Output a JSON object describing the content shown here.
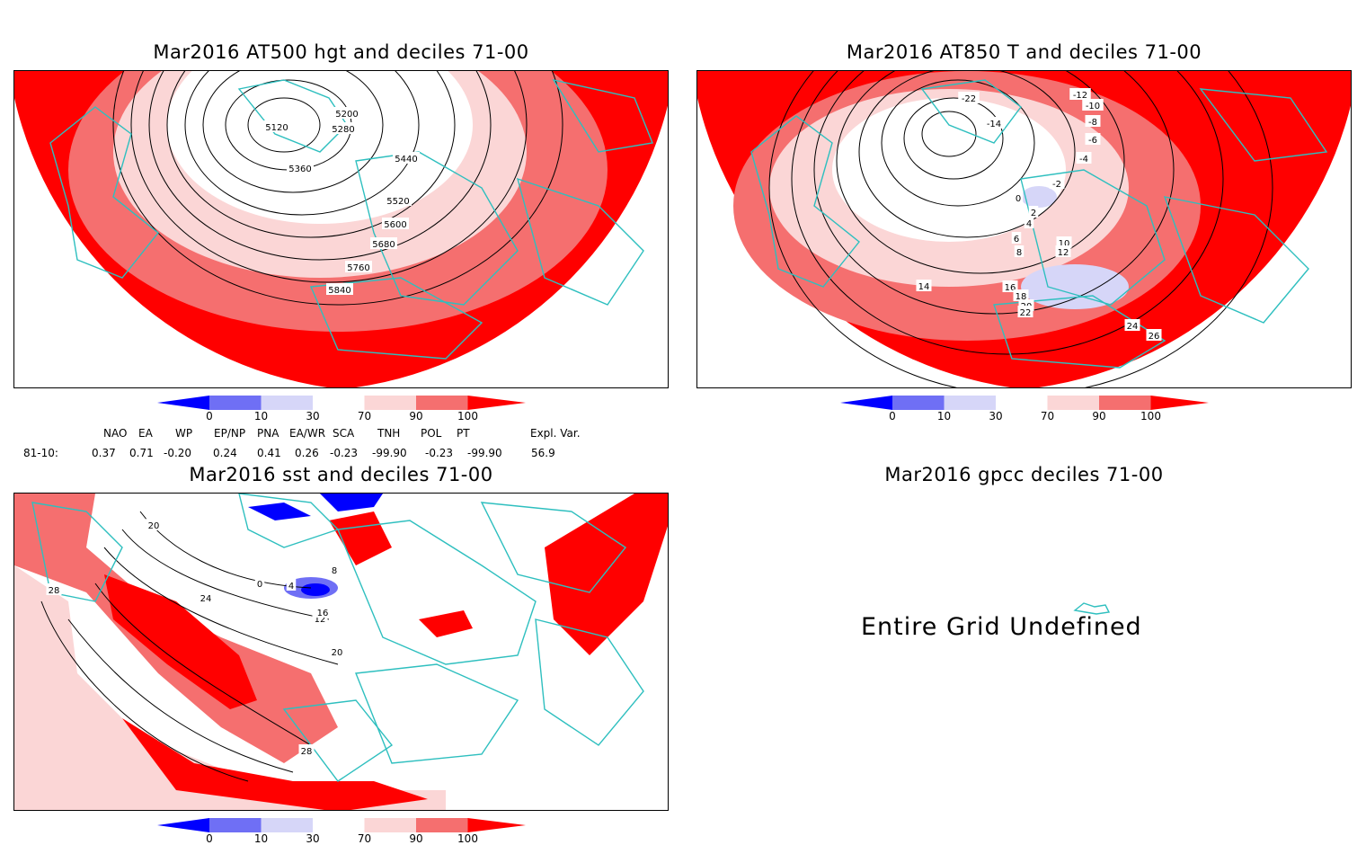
{
  "panels": {
    "hgt": {
      "title": "Mar2016 AT500 hgt and deciles 71-00",
      "contour_labels": [
        "5120",
        "5200",
        "5280",
        "5360",
        "5440",
        "5520",
        "5600",
        "5680",
        "5760",
        "5840"
      ]
    },
    "t850": {
      "title": "Mar2016 AT850 T and deciles 71-00",
      "contour_labels": [
        "-22",
        "-14",
        "-12",
        "-10",
        "-8",
        "-6",
        "-4",
        "-2",
        "0",
        "2",
        "4",
        "6",
        "8",
        "10",
        "12",
        "14",
        "16",
        "18",
        "20",
        "22",
        "24",
        "26"
      ]
    },
    "sst": {
      "title": "Mar2016 sst and deciles 71-00",
      "contour_labels": [
        "20",
        "28",
        "0",
        "4",
        "8",
        "12",
        "16",
        "20",
        "24",
        "28"
      ]
    },
    "gpcc": {
      "title": "Mar2016 gpcc deciles 71-00",
      "message": "Entire Grid Undefined"
    }
  },
  "colorbar": {
    "labels": [
      "0",
      "10",
      "30",
      "70",
      "90",
      "100"
    ],
    "colors": [
      "#0000ff",
      "#6f6ff5",
      "#d6d6f8",
      "#ffffff",
      "#fbd6d6",
      "#f56f6f",
      "#ff0000"
    ]
  },
  "indices": {
    "row_label": "81-10:",
    "headers": [
      "NAO",
      "EA",
      "WP",
      "EP/NP",
      "PNA",
      "EA/WR",
      "SCA",
      "TNH",
      "POL",
      "PT",
      "Expl. Var."
    ],
    "values": [
      "0.37",
      "0.71",
      "-0.20",
      "0.24",
      "0.41",
      "0.26",
      "-0.23",
      "-99.90",
      "-0.23",
      "-99.90",
      "56.9"
    ]
  },
  "map_colors": {
    "coast": "#2ebfbf",
    "red": "#ff0000",
    "mid_red": "#f56f6f",
    "light_red": "#fbd6d6",
    "blue": "#0000ff"
  }
}
